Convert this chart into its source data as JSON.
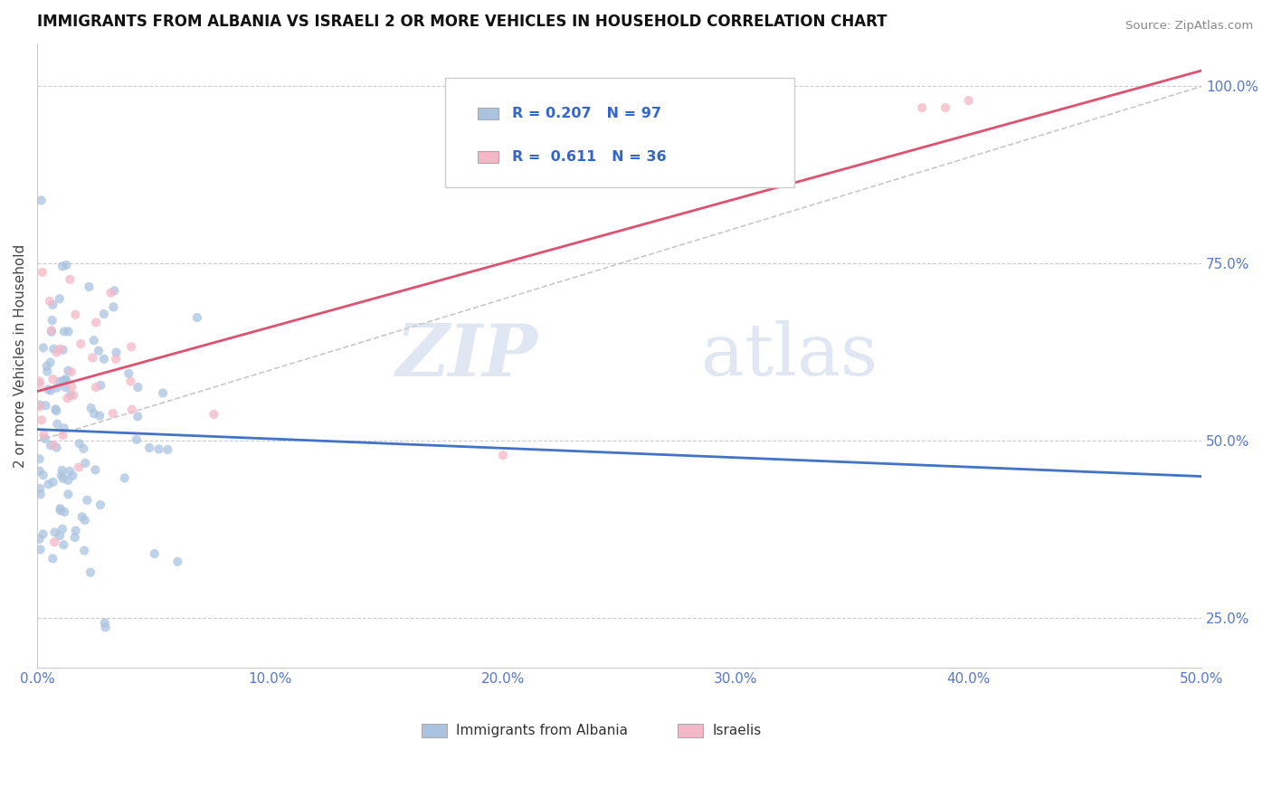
{
  "title": "IMMIGRANTS FROM ALBANIA VS ISRAELI 2 OR MORE VEHICLES IN HOUSEHOLD CORRELATION CHART",
  "source": "Source: ZipAtlas.com",
  "ylabel": "2 or more Vehicles in Household",
  "xlim": [
    0.0,
    0.5
  ],
  "ylim": [
    0.18,
    1.06
  ],
  "xticks": [
    0.0,
    0.1,
    0.2,
    0.3,
    0.4,
    0.5
  ],
  "xtick_labels": [
    "0.0%",
    "10.0%",
    "20.0%",
    "30.0%",
    "40.0%",
    "50.0%"
  ],
  "yticks": [
    0.25,
    0.5,
    0.75,
    1.0
  ],
  "ytick_labels": [
    "25.0%",
    "50.0%",
    "75.0%",
    "100.0%"
  ],
  "blue_color": "#aac4e0",
  "pink_color": "#f4b8c8",
  "blue_line_color": "#4472c4",
  "pink_line_color": "#e05070",
  "gray_dash_color": "#bbbbbb",
  "R_blue": 0.207,
  "N_blue": 97,
  "R_pink": 0.611,
  "N_pink": 36,
  "watermark_zip": "ZIP",
  "watermark_atlas": "atlas",
  "legend_entry1": "Immigrants from Albania",
  "legend_entry2": "Israelis"
}
